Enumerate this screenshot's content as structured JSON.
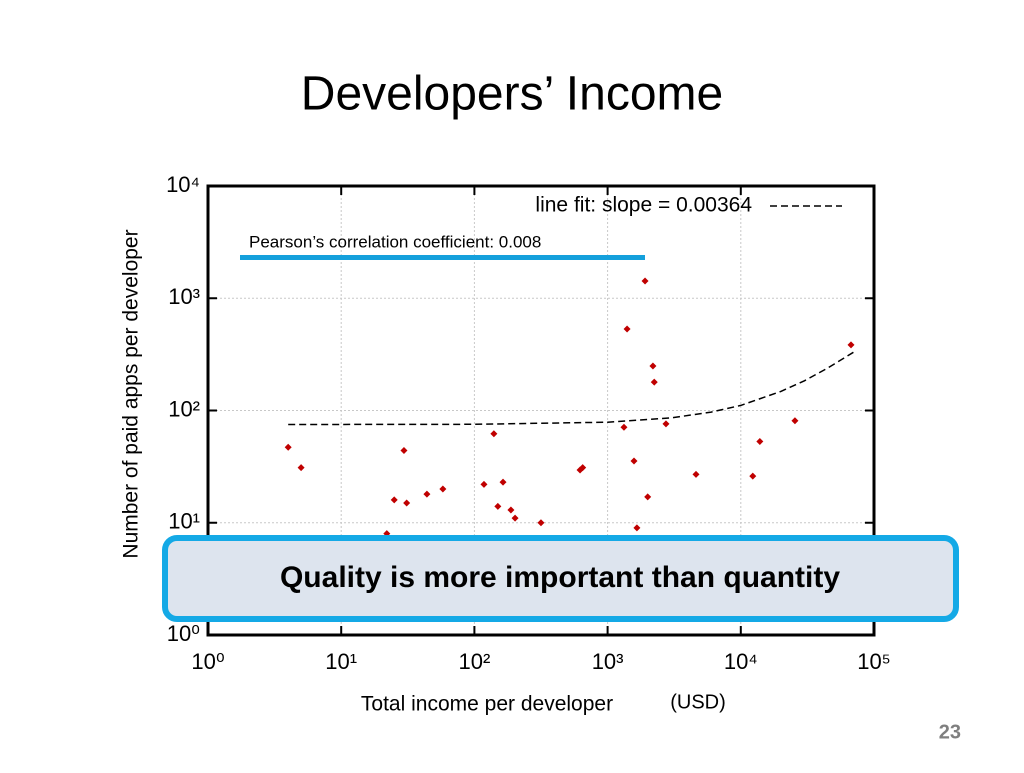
{
  "slide": {
    "title": "Developers’ Income",
    "callout": "Quality is more important than quantity",
    "page_number": "23"
  },
  "chart_data": {
    "type": "scatter",
    "x_label": "Total income per developer",
    "x_unit": "(USD)",
    "y_label": "Number of paid apps per developer",
    "annotation": "Pearson’s correlation coefficient: 0.008",
    "color": "#c00000",
    "xscale": "log",
    "yscale": "log",
    "grid": true,
    "xlim": [
      1,
      100000
    ],
    "ylim": [
      1,
      10000
    ],
    "xticks": [
      {
        "value": 1,
        "label": "10⁰"
      },
      {
        "value": 10,
        "label": "10¹"
      },
      {
        "value": 100,
        "label": "10²"
      },
      {
        "value": 1000,
        "label": "10³"
      },
      {
        "value": 10000,
        "label": "10⁴"
      },
      {
        "value": 100000,
        "label": "10⁵"
      }
    ],
    "yticks": [
      {
        "value": 1,
        "label": "10⁰"
      },
      {
        "value": 10,
        "label": "10¹"
      },
      {
        "value": 100,
        "label": "10²"
      },
      {
        "value": 1000,
        "label": "10³"
      },
      {
        "value": 10000,
        "label": "10⁴"
      }
    ],
    "x": [
      4,
      5,
      29.6,
      25,
      31,
      44,
      58,
      22,
      118,
      140,
      164,
      150,
      188,
      202,
      316,
      621,
      650,
      1400,
      1327,
      1910,
      2190,
      2240,
      2743,
      1578,
      2000,
      1660,
      4610,
      12300,
      13900,
      25500,
      67200
    ],
    "values": [
      47,
      31,
      44,
      16,
      15,
      18,
      20,
      8,
      22,
      62,
      23,
      14,
      13,
      11,
      10,
      29.5,
      31,
      532,
      71,
      1425,
      249,
      179,
      76,
      35.5,
      17,
      9,
      27,
      26,
      53,
      81,
      384
    ],
    "fit_line": {
      "name": "line fit: slope = 0.00364",
      "color": "#000000",
      "dashed": true,
      "x": [
        4,
        100,
        1000,
        3000,
        6000,
        10000,
        20000,
        30000,
        45000,
        70000
      ],
      "values": [
        75,
        75.4,
        78.6,
        85.9,
        96.8,
        111,
        148,
        184,
        239,
        330
      ]
    }
  }
}
